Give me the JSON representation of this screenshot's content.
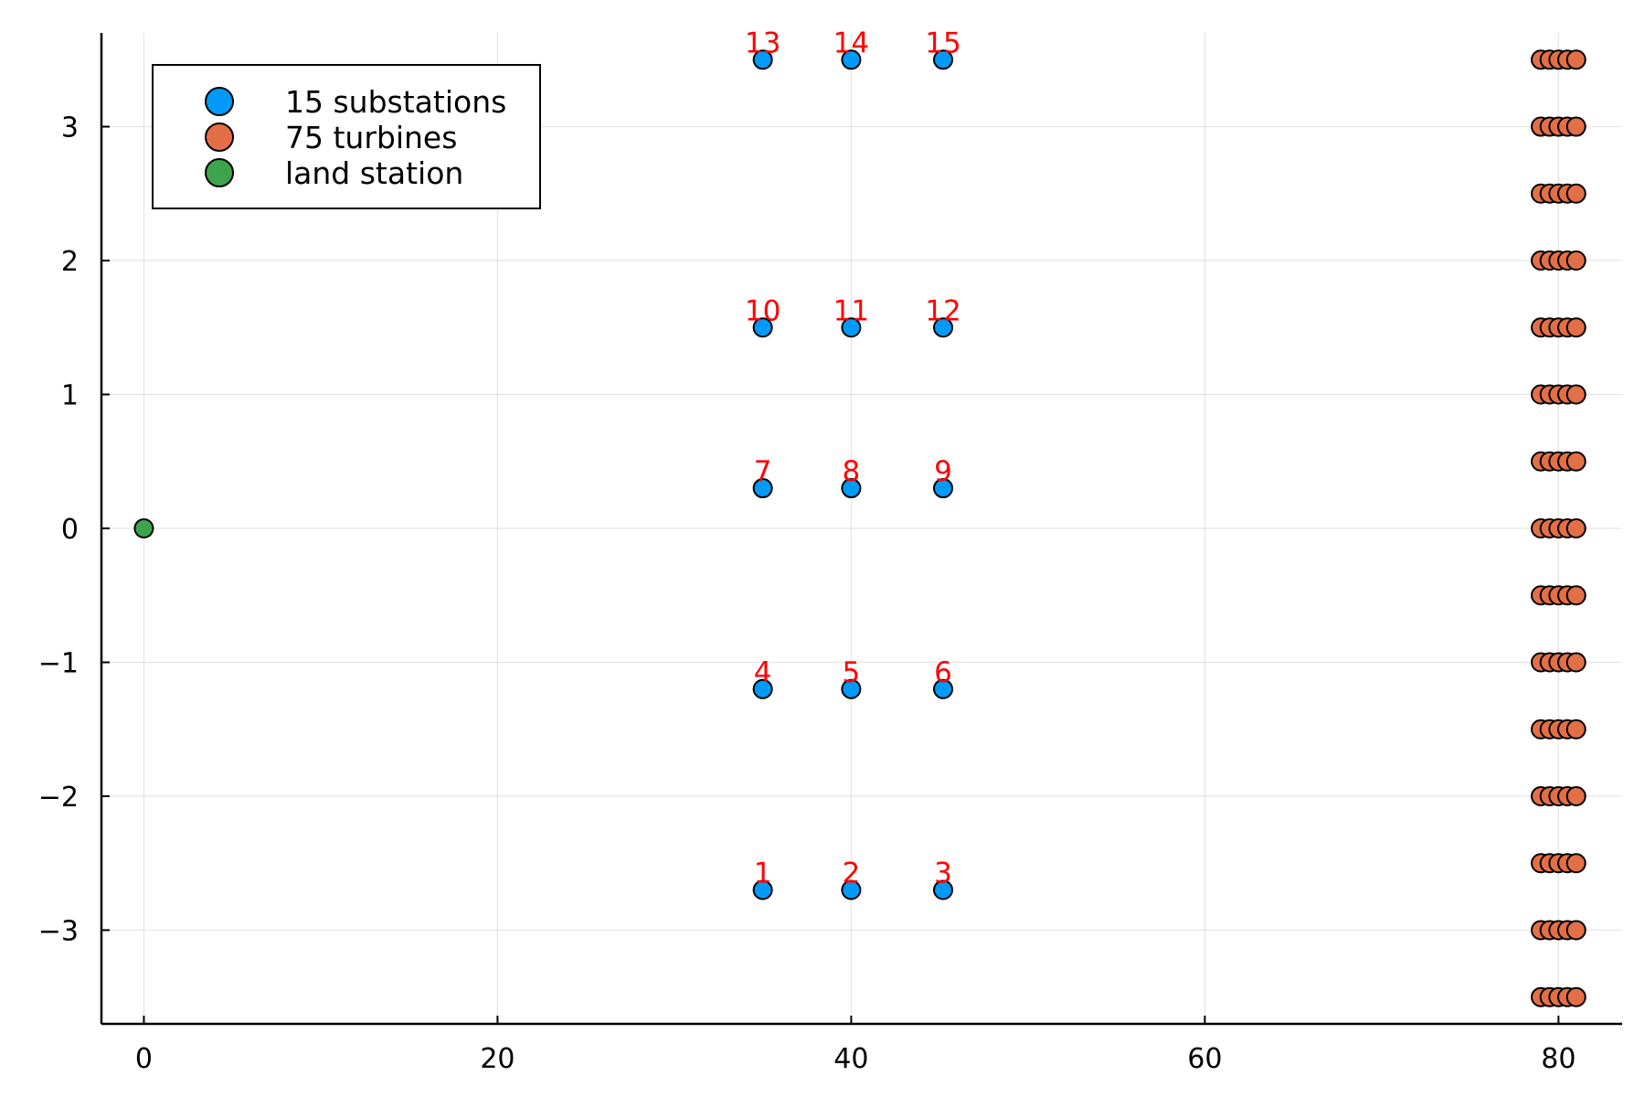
{
  "chart_data": {
    "type": "scatter",
    "title": "",
    "xlabel": "",
    "ylabel": "",
    "xlim": [
      -2.4,
      83.6
    ],
    "ylim": [
      -3.7,
      3.7
    ],
    "xticks": [
      0,
      20,
      40,
      60,
      80
    ],
    "yticks": [
      -3,
      -2,
      -1,
      0,
      1,
      2,
      3
    ],
    "xtick_labels": [
      "0",
      "20",
      "40",
      "60",
      "80"
    ],
    "ytick_labels": [
      "−3",
      "−2",
      "−1",
      "0",
      "1",
      "2",
      "3"
    ],
    "grid": true,
    "legend": {
      "position": "top-left",
      "framed": true
    },
    "series": [
      {
        "name": "15 substations",
        "color": "#009af9",
        "x": [
          35,
          40,
          45.2,
          35,
          40,
          45.2,
          35,
          40,
          45.2,
          35,
          40,
          45.2,
          35,
          40,
          45.2
        ],
        "y": [
          -2.7,
          -2.7,
          -2.7,
          -1.2,
          -1.2,
          -1.2,
          0.3,
          0.3,
          0.3,
          1.5,
          1.5,
          1.5,
          3.5,
          3.5,
          3.5
        ],
        "labels": [
          "1",
          "2",
          "3",
          "4",
          "5",
          "6",
          "7",
          "8",
          "9",
          "10",
          "11",
          "12",
          "13",
          "14",
          "15"
        ],
        "label_color": "#ff0000"
      },
      {
        "name": "75 turbines",
        "color": "#e26f46",
        "columns_x": [
          79,
          79.5,
          80,
          80.5,
          81
        ],
        "rows_y": [
          -3.5,
          -3,
          -2.5,
          -2,
          -1.5,
          -1,
          -0.5,
          0,
          0.5,
          1,
          1.5,
          2,
          2.5,
          3,
          3.5
        ]
      },
      {
        "name": "land station",
        "color": "#3da44d",
        "x": [
          0
        ],
        "y": [
          0
        ]
      }
    ]
  }
}
